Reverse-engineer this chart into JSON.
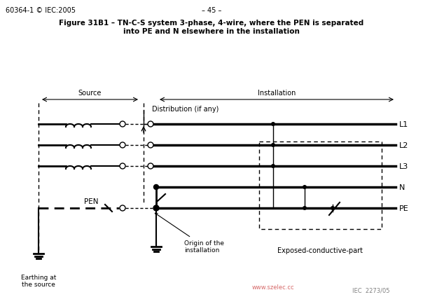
{
  "title_line1": "Figure 31B1 – TN-C-S system 3-phase, 4-wire, where the PEN is separated",
  "title_line2": "into PE and N elsewhere in the installation",
  "header_left": "60364-1 © IEC:2005",
  "header_center": "– 45 –",
  "watermark": "www.szelec.cc",
  "watermark2": "IEC  2273/05",
  "bg_color": "#ffffff",
  "label_L1": "L1",
  "label_L2": "L2",
  "label_L3": "L3",
  "label_N": "N",
  "label_PE": "PE",
  "label_PEN": "PEN",
  "label_source": "Source",
  "label_installation": "Installation",
  "label_distribution": "Distribution (if any)",
  "label_origin": "Origin of the\ninstallation",
  "label_earthing": "Earthing at\nthe source",
  "label_exposed": "Exposed-conductive-part"
}
